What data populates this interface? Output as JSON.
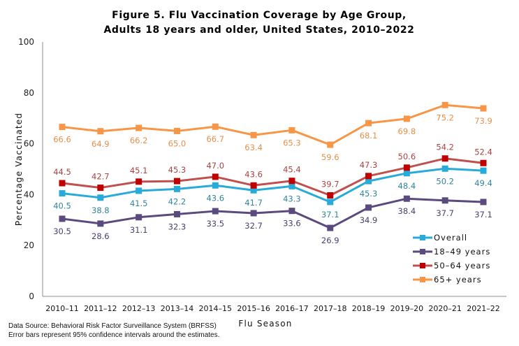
{
  "chart_data": {
    "type": "line",
    "title": "Figure 5. Flu Vaccination Coverage by Age Group,",
    "subtitle": "Adults 18 years and older, United States, 2010–2022",
    "xlabel": "Flu Season",
    "ylabel": "Percentage Vaccinated",
    "ylim": [
      0,
      100
    ],
    "yticks": [
      "0",
      "20",
      "40",
      "60",
      "80",
      "100"
    ],
    "ytick_values": [
      0,
      20,
      40,
      60,
      80,
      100
    ],
    "grid": false,
    "legend_position": "bottom-right",
    "categories": [
      "2010–11",
      "2011–12",
      "2012–13",
      "2013–14",
      "2014–15",
      "2015–16",
      "2016–17",
      "2017–18",
      "2018–19",
      "2019–20",
      "2020–21",
      "2021–22"
    ],
    "series": [
      {
        "name": "Overall",
        "color": "#29ABD9",
        "label_color": "#31859C",
        "values": [
          40.5,
          38.8,
          41.5,
          42.2,
          43.6,
          41.7,
          43.3,
          37.1,
          45.3,
          48.4,
          50.2,
          49.4
        ],
        "label_pos": "below"
      },
      {
        "name": "18–49 years",
        "color": "#5B4A7E",
        "label_color": "#4A3F6B",
        "values": [
          30.5,
          28.6,
          31.1,
          32.3,
          33.5,
          32.7,
          33.6,
          26.9,
          34.9,
          38.4,
          37.7,
          37.1
        ],
        "label_pos": "below"
      },
      {
        "name": "50–64 years",
        "color": "#C0504D",
        "marker_color": "#C00000",
        "label_color": "#A94442",
        "values": [
          44.5,
          42.7,
          45.1,
          45.3,
          47.0,
          43.6,
          45.4,
          39.7,
          47.3,
          50.6,
          54.2,
          52.4
        ],
        "label_pos": "above"
      },
      {
        "name": "65+ years",
        "color": "#F79646",
        "label_color": "#E8904A",
        "values": [
          66.6,
          64.9,
          66.2,
          65.0,
          66.7,
          63.4,
          65.3,
          59.6,
          68.1,
          69.8,
          75.2,
          73.9
        ],
        "label_pos": "below"
      }
    ],
    "legend_order": [
      "Overall",
      "18–49 years",
      "50–64 years",
      "65+ years"
    ],
    "notes": [
      "Data Source: Behavioral Risk Factor Surveillance System (BRFSS)",
      "Error bars represent 95% confidence  intervals  around  the  estimates."
    ]
  }
}
